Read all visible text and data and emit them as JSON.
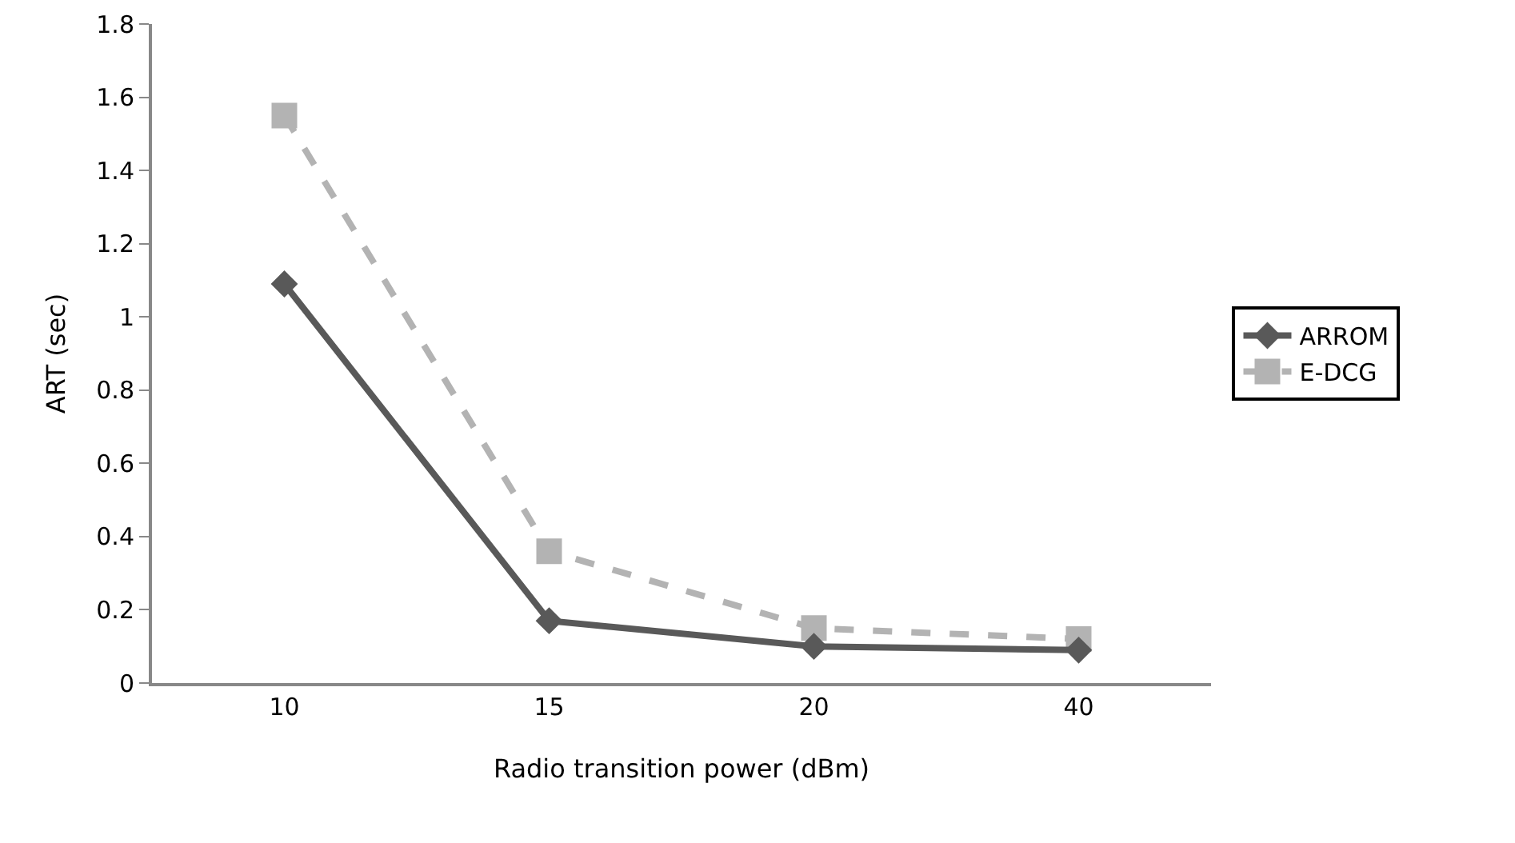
{
  "chart_data": {
    "type": "line",
    "xlabel": "Radio transition power (dBm)",
    "ylabel": "ART (sec)",
    "categories": [
      "10",
      "15",
      "20",
      "40"
    ],
    "series": [
      {
        "name": "ARROM",
        "color": "#595959",
        "values": [
          1.09,
          0.17,
          0.1,
          0.09
        ],
        "marker": "diamond",
        "line_style": "solid"
      },
      {
        "name": "E-DCG",
        "color": "#b3b3b3",
        "values": [
          1.55,
          0.36,
          0.15,
          0.12
        ],
        "marker": "square",
        "line_style": "dashed"
      }
    ],
    "ylim": [
      0,
      1.8
    ],
    "yticks": [
      0,
      0.2,
      0.4,
      0.6,
      0.8,
      1,
      1.2,
      1.4,
      1.6,
      1.8
    ],
    "grid": false,
    "legend": "right"
  }
}
